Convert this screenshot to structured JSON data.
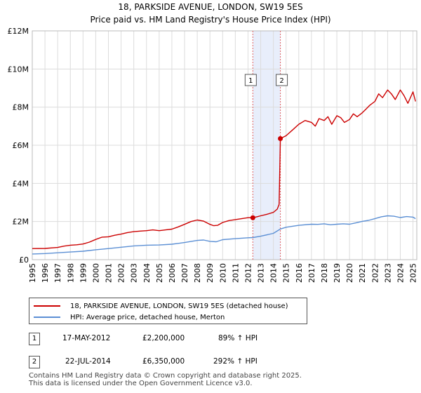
{
  "chart_data": {
    "type": "line",
    "title": "18, PARKSIDE AVENUE, LONDON, SW19 5ES",
    "subtitle": "Price paid vs. HM Land Registry's House Price Index (HPI)",
    "xlabel": "",
    "ylabel": "",
    "xlim": [
      1995,
      2025.3
    ],
    "ylim": [
      0,
      12000000
    ],
    "yticks": [
      0,
      2000000,
      4000000,
      6000000,
      8000000,
      10000000,
      12000000
    ],
    "ytick_labels": [
      "£0",
      "£2M",
      "£4M",
      "£6M",
      "£8M",
      "£10M",
      "£12M"
    ],
    "xticks": [
      1995,
      1996,
      1997,
      1998,
      1999,
      2000,
      2001,
      2002,
      2003,
      2004,
      2005,
      2006,
      2007,
      2008,
      2009,
      2010,
      2011,
      2012,
      2013,
      2014,
      2015,
      2016,
      2017,
      2018,
      2019,
      2020,
      2021,
      2022,
      2023,
      2024,
      2025
    ],
    "grid": true,
    "series": [
      {
        "name": "18, PARKSIDE AVENUE, LONDON, SW19 5ES (detached house)",
        "color": "#cc0000",
        "x": [
          1995.0,
          1996.0,
          1997.0,
          1997.5,
          1998.0,
          1998.5,
          1999.0,
          1999.5,
          2000.0,
          2000.5,
          2001.0,
          2001.5,
          2002.0,
          2002.5,
          2003.0,
          2003.5,
          2004.0,
          2004.5,
          2005.0,
          2005.5,
          2006.0,
          2006.5,
          2007.0,
          2007.5,
          2008.0,
          2008.5,
          2009.0,
          2009.3,
          2009.6,
          2010.0,
          2010.5,
          2011.0,
          2011.5,
          2012.0,
          2012.38,
          2012.7,
          2013.0,
          2013.5,
          2014.0,
          2014.3,
          2014.45,
          2014.55,
          2015.0,
          2015.5,
          2016.0,
          2016.5,
          2017.0,
          2017.3,
          2017.6,
          2018.0,
          2018.3,
          2018.6,
          2019.0,
          2019.3,
          2019.6,
          2020.0,
          2020.3,
          2020.6,
          2021.0,
          2021.3,
          2021.6,
          2022.0,
          2022.3,
          2022.6,
          2023.0,
          2023.3,
          2023.6,
          2024.0,
          2024.3,
          2024.6,
          2025.0,
          2025.2
        ],
        "values": [
          580000,
          590000,
          640000,
          710000,
          760000,
          780000,
          820000,
          920000,
          1060000,
          1180000,
          1200000,
          1280000,
          1340000,
          1420000,
          1470000,
          1500000,
          1520000,
          1560000,
          1520000,
          1560000,
          1600000,
          1720000,
          1850000,
          2000000,
          2080000,
          2020000,
          1850000,
          1780000,
          1800000,
          1950000,
          2050000,
          2100000,
          2150000,
          2200000,
          2200000,
          2250000,
          2300000,
          2380000,
          2480000,
          2650000,
          2900000,
          6350000,
          6500000,
          6800000,
          7100000,
          7300000,
          7200000,
          7000000,
          7400000,
          7300000,
          7500000,
          7100000,
          7550000,
          7450000,
          7200000,
          7350000,
          7650000,
          7500000,
          7700000,
          7900000,
          8100000,
          8300000,
          8700000,
          8500000,
          8900000,
          8700000,
          8400000,
          8900000,
          8600000,
          8200000,
          8800000,
          8300000
        ]
      },
      {
        "name": "HPI: Average price, detached house, Merton",
        "color": "#5b8fd4",
        "x": [
          1995.0,
          1996.0,
          1997.0,
          1998.0,
          1999.0,
          2000.0,
          2001.0,
          2002.0,
          2003.0,
          2004.0,
          2005.0,
          2006.0,
          2007.0,
          2008.0,
          2008.5,
          2009.0,
          2009.5,
          2010.0,
          2011.0,
          2012.0,
          2012.38,
          2013.0,
          2014.0,
          2014.55,
          2015.0,
          2016.0,
          2017.0,
          2017.5,
          2018.0,
          2018.5,
          2019.0,
          2019.5,
          2020.0,
          2020.5,
          2021.0,
          2021.5,
          2022.0,
          2022.5,
          2023.0,
          2023.5,
          2024.0,
          2024.5,
          2025.0,
          2025.2
        ],
        "values": [
          300000,
          320000,
          360000,
          400000,
          440000,
          520000,
          580000,
          650000,
          720000,
          760000,
          770000,
          810000,
          900000,
          1010000,
          1030000,
          960000,
          940000,
          1050000,
          1100000,
          1150000,
          1160000,
          1230000,
          1380000,
          1610000,
          1700000,
          1800000,
          1860000,
          1850000,
          1880000,
          1830000,
          1860000,
          1880000,
          1860000,
          1930000,
          2010000,
          2060000,
          2150000,
          2250000,
          2300000,
          2280000,
          2210000,
          2260000,
          2230000,
          2150000
        ]
      }
    ],
    "annotations": [
      {
        "label": "1",
        "x": 2012.38,
        "value": 2200000
      },
      {
        "label": "2",
        "x": 2014.55,
        "value": 6350000
      }
    ],
    "shaded_range": [
      2012.38,
      2014.55
    ]
  },
  "legend": {
    "items": [
      {
        "label": "18, PARKSIDE AVENUE, LONDON, SW19 5ES (detached house)",
        "color": "#cc0000"
      },
      {
        "label": "HPI: Average price, detached house, Merton",
        "color": "#5b8fd4"
      }
    ]
  },
  "transactions": [
    {
      "num": "1",
      "date": "17-MAY-2012",
      "price": "£2,200,000",
      "hpi": "89% ↑ HPI"
    },
    {
      "num": "2",
      "date": "22-JUL-2014",
      "price": "£6,350,000",
      "hpi": "292% ↑ HPI"
    }
  ],
  "footer": {
    "line1": "Contains HM Land Registry data © Crown copyright and database right 2025.",
    "line2": "This data is licensed under the Open Government Licence v3.0."
  }
}
